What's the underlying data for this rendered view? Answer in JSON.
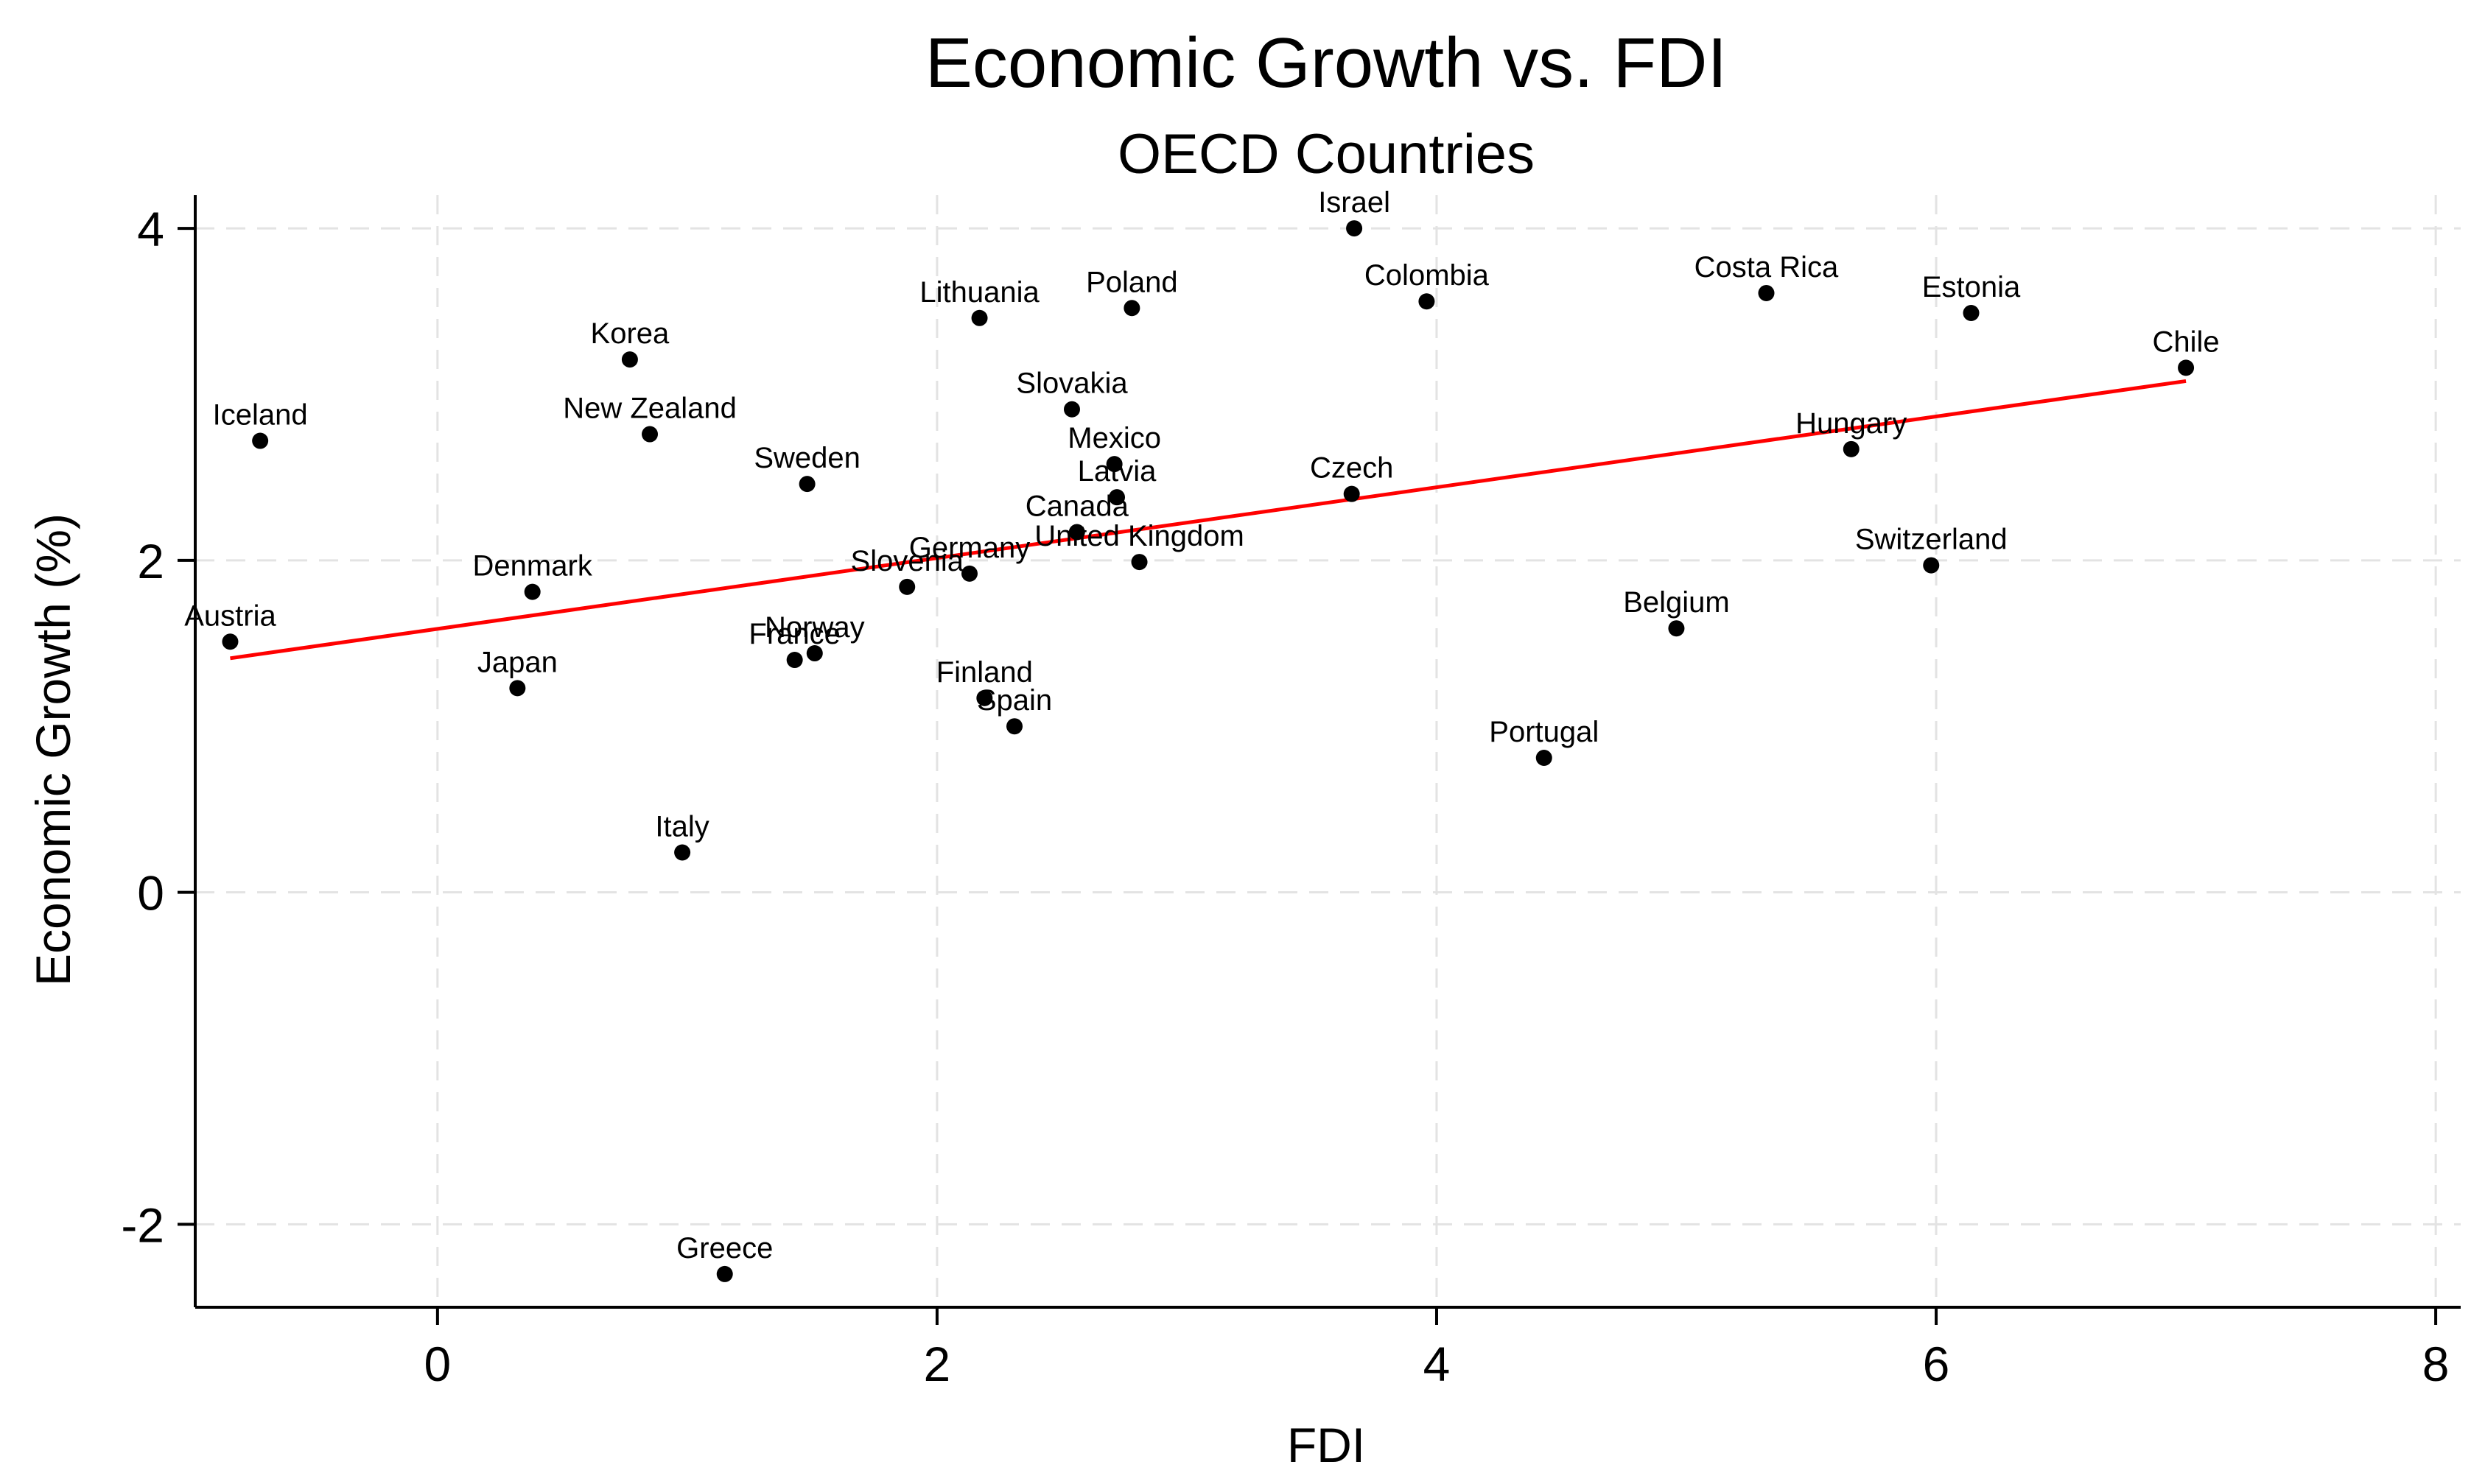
{
  "chart_data": {
    "type": "scatter",
    "title": "Economic Growth vs. FDI",
    "subtitle": "OECD Countries",
    "xlabel": "FDI",
    "ylabel": "Economic Growth (%)",
    "xlim": [
      -0.97,
      8.1
    ],
    "ylim": [
      -2.5,
      4.2
    ],
    "xticks": [
      0,
      2,
      4,
      6,
      8
    ],
    "yticks": [
      -2,
      0,
      2,
      4
    ],
    "xtick_labels": [
      "0",
      "2",
      "4",
      "6",
      "8"
    ],
    "ytick_labels": [
      "-2",
      "0",
      "2",
      "4"
    ],
    "grid": true,
    "colors": {
      "points": "#000000",
      "fit_line": "#ff0000",
      "grid": "#e3e3e3"
    },
    "points": [
      {
        "label": "Israel",
        "x": 3.67,
        "y": 4.0
      },
      {
        "label": "Lithuania",
        "x": 2.17,
        "y": 3.46
      },
      {
        "label": "Poland",
        "x": 2.78,
        "y": 3.52
      },
      {
        "label": "Colombia",
        "x": 3.96,
        "y": 3.56
      },
      {
        "label": "Costa Rica",
        "x": 5.32,
        "y": 3.61
      },
      {
        "label": "Estonia",
        "x": 6.14,
        "y": 3.49
      },
      {
        "label": "Chile",
        "x": 7.0,
        "y": 3.16
      },
      {
        "label": "Korea",
        "x": 0.77,
        "y": 3.21
      },
      {
        "label": "Iceland",
        "x": -0.71,
        "y": 2.72
      },
      {
        "label": "New Zealand",
        "x": 0.85,
        "y": 2.76
      },
      {
        "label": "Slovakia",
        "x": 2.54,
        "y": 2.91
      },
      {
        "label": "Sweden",
        "x": 1.48,
        "y": 2.46
      },
      {
        "label": "Mexico",
        "x": 2.71,
        "y": 2.58
      },
      {
        "label": "Latvia",
        "x": 2.72,
        "y": 2.38
      },
      {
        "label": "Czech",
        "x": 3.66,
        "y": 2.4
      },
      {
        "label": "Hungary",
        "x": 5.66,
        "y": 2.67
      },
      {
        "label": "Canada",
        "x": 2.56,
        "y": 2.17
      },
      {
        "label": "United Kingdom",
        "x": 2.81,
        "y": 1.99
      },
      {
        "label": "Switzerland",
        "x": 5.98,
        "y": 1.97
      },
      {
        "label": "Denmark",
        "x": 0.38,
        "y": 1.81
      },
      {
        "label": "Germany",
        "x": 2.13,
        "y": 1.92
      },
      {
        "label": "Slovenia",
        "x": 1.88,
        "y": 1.84
      },
      {
        "label": "Austria",
        "x": -0.83,
        "y": 1.51
      },
      {
        "label": "Belgium",
        "x": 4.96,
        "y": 1.59
      },
      {
        "label": "Norway",
        "x": 1.51,
        "y": 1.44
      },
      {
        "label": "France",
        "x": 1.43,
        "y": 1.4
      },
      {
        "label": "Japan",
        "x": 0.32,
        "y": 1.23
      },
      {
        "label": "Finland",
        "x": 2.19,
        "y": 1.17
      },
      {
        "label": "Spain",
        "x": 2.31,
        "y": 1.0
      },
      {
        "label": "Portugal",
        "x": 4.43,
        "y": 0.81
      },
      {
        "label": "Italy",
        "x": 0.98,
        "y": 0.24
      },
      {
        "label": "Greece",
        "x": 1.15,
        "y": -2.3
      }
    ],
    "fit_line": {
      "x": [
        -0.83,
        7.0
      ],
      "y": [
        1.41,
        3.08
      ]
    }
  }
}
